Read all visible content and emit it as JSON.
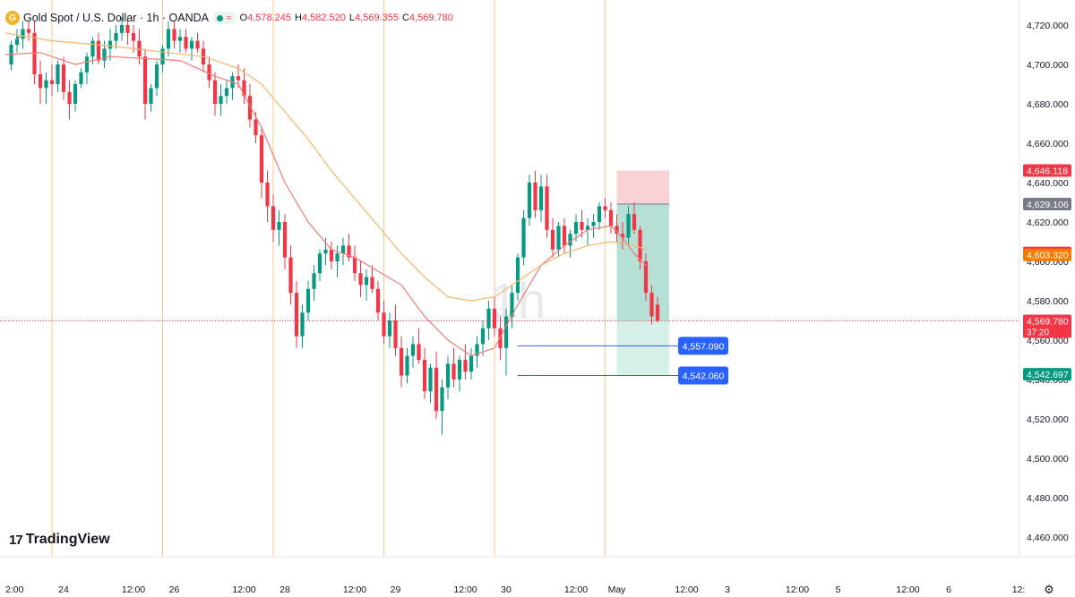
{
  "header": {
    "symbol_title": "Gold Spot / U.S. Dollar · 1h · OANDA",
    "open_label": "O",
    "open_value": "4,578.245",
    "high_label": "H",
    "high_value": "4,582.520",
    "low_label": "L",
    "low_value": "4,569.355",
    "close_label": "C",
    "close_value": "4,569.780",
    "logo_glyph": "G",
    "collapse_glyph": "⌄"
  },
  "branding": {
    "logo_mark": "17",
    "name": "TradingView"
  },
  "watermark": "1h",
  "settings_glyph": "⚙",
  "colors": {
    "up": "#089981",
    "down": "#f23645",
    "ma_fast": "#f07c78",
    "ma_slow": "#f6b66b",
    "session_line": "#f8c98a",
    "stop_zone": "#f9d2d6",
    "target_zone": "#b6e0d6",
    "target_zone_light": "#d6efe9",
    "price_tag_blue": "#2962ff",
    "axis_text": "#131722"
  },
  "chart_data": {
    "type": "candlestick",
    "title": "Gold Spot / U.S. Dollar · 1h · OANDA",
    "ylim": [
      4450,
      4730
    ],
    "y_ticks": [
      4460,
      4480,
      4500,
      4520,
      4540,
      4560,
      4580,
      4600,
      4620,
      4640,
      4660,
      4680,
      4700,
      4720
    ],
    "y_tick_labels": [
      "4,460.000",
      "4,480.000",
      "4,500.000",
      "4,520.000",
      "4,540.000",
      "4,560.000",
      "4,580.000",
      "4,600.000",
      "4,620.000",
      "4,640.000",
      "4,660.000",
      "4,680.000",
      "4,700.000",
      "4,720.000"
    ],
    "x_range_hours": [
      0,
      190
    ],
    "x_ticks": [
      {
        "label": "2:00",
        "x": 0
      },
      {
        "label": "24",
        "x": 10
      },
      {
        "label": "12:00",
        "x": 22
      },
      {
        "label": "26",
        "x": 29
      },
      {
        "label": "12:00",
        "x": 41
      },
      {
        "label": "28",
        "x": 48
      },
      {
        "label": "12:00",
        "x": 60
      },
      {
        "label": "29",
        "x": 67
      },
      {
        "label": "12:00",
        "x": 79
      },
      {
        "label": "30",
        "x": 86
      },
      {
        "label": "12:00",
        "x": 98
      },
      {
        "label": "May",
        "x": 105
      },
      {
        "label": "12:00",
        "x": 117
      },
      {
        "label": "3",
        "x": 124
      },
      {
        "label": "12:00",
        "x": 136
      },
      {
        "label": "5",
        "x": 143
      },
      {
        "label": "12:00",
        "x": 155
      },
      {
        "label": "6",
        "x": 162
      },
      {
        "label": "12:",
        "x": 174
      }
    ],
    "session_lines_x": [
      8,
      27,
      46,
      65,
      84,
      103
    ],
    "candles": [
      [
        4700,
        4712,
        4697,
        4710
      ],
      [
        4710,
        4718,
        4706,
        4713
      ],
      [
        4713,
        4722,
        4708,
        4718
      ],
      [
        4718,
        4722,
        4712,
        4716
      ],
      [
        4716,
        4722,
        4690,
        4695
      ],
      [
        4695,
        4702,
        4680,
        4688
      ],
      [
        4688,
        4696,
        4680,
        4692
      ],
      [
        4692,
        4700,
        4684,
        4690
      ],
      [
        4690,
        4702,
        4686,
        4700
      ],
      [
        4700,
        4704,
        4682,
        4686
      ],
      [
        4686,
        4692,
        4672,
        4680
      ],
      [
        4680,
        4692,
        4676,
        4690
      ],
      [
        4690,
        4698,
        4688,
        4696
      ],
      [
        4696,
        4706,
        4690,
        4704
      ],
      [
        4704,
        4714,
        4700,
        4712
      ],
      [
        4712,
        4716,
        4700,
        4702
      ],
      [
        4702,
        4712,
        4698,
        4708
      ],
      [
        4708,
        4718,
        4702,
        4712
      ],
      [
        4712,
        4720,
        4708,
        4716
      ],
      [
        4716,
        4724,
        4712,
        4720
      ],
      [
        4720,
        4724,
        4710,
        4716
      ],
      [
        4716,
        4720,
        4706,
        4712
      ],
      [
        4712,
        4718,
        4700,
        4704
      ],
      [
        4704,
        4708,
        4672,
        4680
      ],
      [
        4680,
        4690,
        4676,
        4688
      ],
      [
        4688,
        4702,
        4684,
        4700
      ],
      [
        4700,
        4710,
        4696,
        4708
      ],
      [
        4708,
        4722,
        4704,
        4718
      ],
      [
        4718,
        4722,
        4708,
        4712
      ],
      [
        4712,
        4718,
        4706,
        4714
      ],
      [
        4714,
        4718,
        4706,
        4708
      ],
      [
        4708,
        4714,
        4702,
        4712
      ],
      [
        4712,
        4716,
        4706,
        4708
      ],
      [
        4708,
        4712,
        4696,
        4700
      ],
      [
        4700,
        4704,
        4688,
        4692
      ],
      [
        4692,
        4696,
        4674,
        4680
      ],
      [
        4680,
        4690,
        4674,
        4684
      ],
      [
        4684,
        4692,
        4680,
        4688
      ],
      [
        4688,
        4696,
        4682,
        4694
      ],
      [
        4694,
        4700,
        4688,
        4692
      ],
      [
        4692,
        4698,
        4680,
        4684
      ],
      [
        4684,
        4690,
        4668,
        4672
      ],
      [
        4672,
        4676,
        4660,
        4664
      ],
      [
        4664,
        4668,
        4632,
        4640
      ],
      [
        4640,
        4646,
        4620,
        4628
      ],
      [
        4628,
        4634,
        4610,
        4616
      ],
      [
        4616,
        4626,
        4608,
        4620
      ],
      [
        4620,
        4624,
        4596,
        4602
      ],
      [
        4602,
        4608,
        4578,
        4584
      ],
      [
        4584,
        4590,
        4556,
        4562
      ],
      [
        4562,
        4578,
        4556,
        4574
      ],
      [
        4574,
        4590,
        4570,
        4586
      ],
      [
        4586,
        4598,
        4580,
        4594
      ],
      [
        4594,
        4606,
        4590,
        4604
      ],
      [
        4604,
        4612,
        4598,
        4606
      ],
      [
        4606,
        4610,
        4596,
        4600
      ],
      [
        4600,
        4608,
        4592,
        4604
      ],
      [
        4604,
        4612,
        4598,
        4608
      ],
      [
        4608,
        4614,
        4600,
        4602
      ],
      [
        4602,
        4608,
        4590,
        4594
      ],
      [
        4594,
        4600,
        4582,
        4588
      ],
      [
        4588,
        4596,
        4580,
        4592
      ],
      [
        4592,
        4598,
        4584,
        4586
      ],
      [
        4586,
        4590,
        4570,
        4574
      ],
      [
        4574,
        4580,
        4558,
        4562
      ],
      [
        4562,
        4574,
        4556,
        4570
      ],
      [
        4570,
        4578,
        4552,
        4556
      ],
      [
        4556,
        4562,
        4536,
        4542
      ],
      [
        4542,
        4556,
        4538,
        4552
      ],
      [
        4552,
        4562,
        4546,
        4558
      ],
      [
        4558,
        4566,
        4548,
        4550
      ],
      [
        4550,
        4556,
        4530,
        4534
      ],
      [
        4534,
        4548,
        4528,
        4546
      ],
      [
        4546,
        4554,
        4520,
        4524
      ],
      [
        4524,
        4540,
        4512,
        4536
      ],
      [
        4536,
        4552,
        4530,
        4548
      ],
      [
        4548,
        4556,
        4536,
        4540
      ],
      [
        4540,
        4552,
        4534,
        4550
      ],
      [
        4550,
        4558,
        4540,
        4544
      ],
      [
        4544,
        4556,
        4540,
        4552
      ],
      [
        4552,
        4562,
        4546,
        4558
      ],
      [
        4558,
        4570,
        4552,
        4566
      ],
      [
        4566,
        4580,
        4560,
        4576
      ],
      [
        4576,
        4582,
        4562,
        4566
      ],
      [
        4566,
        4572,
        4550,
        4556
      ],
      [
        4556,
        4576,
        4542,
        4572
      ],
      [
        4572,
        4588,
        4566,
        4584
      ],
      [
        4584,
        4604,
        4580,
        4602
      ],
      [
        4602,
        4626,
        4598,
        4622
      ],
      [
        4622,
        4644,
        4618,
        4640
      ],
      [
        4640,
        4646,
        4622,
        4626
      ],
      [
        4626,
        4644,
        4620,
        4638
      ],
      [
        4638,
        4644,
        4612,
        4616
      ],
      [
        4616,
        4622,
        4602,
        4606
      ],
      [
        4606,
        4620,
        4602,
        4618
      ],
      [
        4618,
        4622,
        4604,
        4608
      ],
      [
        4608,
        4616,
        4602,
        4614
      ],
      [
        4614,
        4624,
        4610,
        4620
      ],
      [
        4620,
        4626,
        4612,
        4616
      ],
      [
        4616,
        4622,
        4608,
        4618
      ],
      [
        4618,
        4624,
        4612,
        4620
      ],
      [
        4620,
        4630,
        4616,
        4628
      ],
      [
        4628,
        4632,
        4622,
        4626
      ],
      [
        4626,
        4630,
        4614,
        4618
      ],
      [
        4618,
        4624,
        4610,
        4614
      ],
      [
        4614,
        4620,
        4606,
        4612
      ],
      [
        4612,
        4628,
        4608,
        4624
      ],
      [
        4624,
        4630,
        4614,
        4616
      ],
      [
        4616,
        4618,
        4596,
        4600
      ],
      [
        4600,
        4604,
        4580,
        4584
      ],
      [
        4584,
        4588,
        4568,
        4572
      ],
      [
        4578,
        4582,
        4569,
        4570
      ]
    ],
    "moving_averages": [
      {
        "color": "#f07c78",
        "points": [
          [
            0,
            4705
          ],
          [
            6,
            4706
          ],
          [
            12,
            4700
          ],
          [
            18,
            4704
          ],
          [
            24,
            4703
          ],
          [
            30,
            4702
          ],
          [
            36,
            4694
          ],
          [
            40,
            4690
          ],
          [
            44,
            4668
          ],
          [
            48,
            4640
          ],
          [
            52,
            4620
          ],
          [
            56,
            4606
          ],
          [
            60,
            4602
          ],
          [
            64,
            4595
          ],
          [
            68,
            4588
          ],
          [
            72,
            4572
          ],
          [
            76,
            4560
          ],
          [
            80,
            4552
          ],
          [
            84,
            4556
          ],
          [
            88,
            4578
          ],
          [
            92,
            4598
          ],
          [
            96,
            4608
          ],
          [
            100,
            4616
          ],
          [
            104,
            4618
          ],
          [
            106,
            4612
          ],
          [
            108,
            4604
          ],
          [
            110,
            4598
          ]
        ]
      },
      {
        "color": "#f6b66b",
        "points": [
          [
            0,
            4716
          ],
          [
            8,
            4712
          ],
          [
            16,
            4710
          ],
          [
            22,
            4708
          ],
          [
            28,
            4706
          ],
          [
            34,
            4704
          ],
          [
            40,
            4698
          ],
          [
            44,
            4690
          ],
          [
            48,
            4676
          ],
          [
            52,
            4662
          ],
          [
            56,
            4646
          ],
          [
            60,
            4632
          ],
          [
            64,
            4618
          ],
          [
            68,
            4604
          ],
          [
            72,
            4592
          ],
          [
            76,
            4582
          ],
          [
            80,
            4580
          ],
          [
            84,
            4582
          ],
          [
            88,
            4590
          ],
          [
            92,
            4598
          ],
          [
            96,
            4604
          ],
          [
            100,
            4608
          ],
          [
            104,
            4610
          ],
          [
            108,
            4608
          ],
          [
            110,
            4606
          ]
        ]
      }
    ],
    "position": {
      "entry": 4629.106,
      "stop": 4646.118,
      "target": 4542.697,
      "x_start": 105,
      "x_end": 114
    },
    "horizontal_levels": [
      {
        "price": 4557.09,
        "label": "4,557.090",
        "x_start": 88,
        "x_end": 114
      },
      {
        "price": 4542.06,
        "label": "4,542.060",
        "x_start": 88,
        "x_end": 114
      }
    ],
    "current_price": 4569.78,
    "price_tags": [
      {
        "price": 4646.118,
        "label": "4,646.118",
        "bg": "#f23645",
        "fg": "#ffffff"
      },
      {
        "price": 4629.106,
        "label": "4,629.106",
        "bg": "#787b86",
        "fg": "#ffffff"
      },
      {
        "price": 4604.268,
        "label": "4,604.268",
        "bg": "#f23645",
        "fg": "#ffffff"
      },
      {
        "price": 4603.32,
        "label": "4,603.320",
        "bg": "#f57c00",
        "fg": "#ffffff"
      },
      {
        "price": 4569.78,
        "label": "4,569.780",
        "sublabel": "37:20",
        "bg": "#f23645",
        "fg": "#ffffff"
      },
      {
        "price": 4542.697,
        "label": "4,542.697",
        "bg": "#089981",
        "fg": "#ffffff"
      }
    ]
  }
}
